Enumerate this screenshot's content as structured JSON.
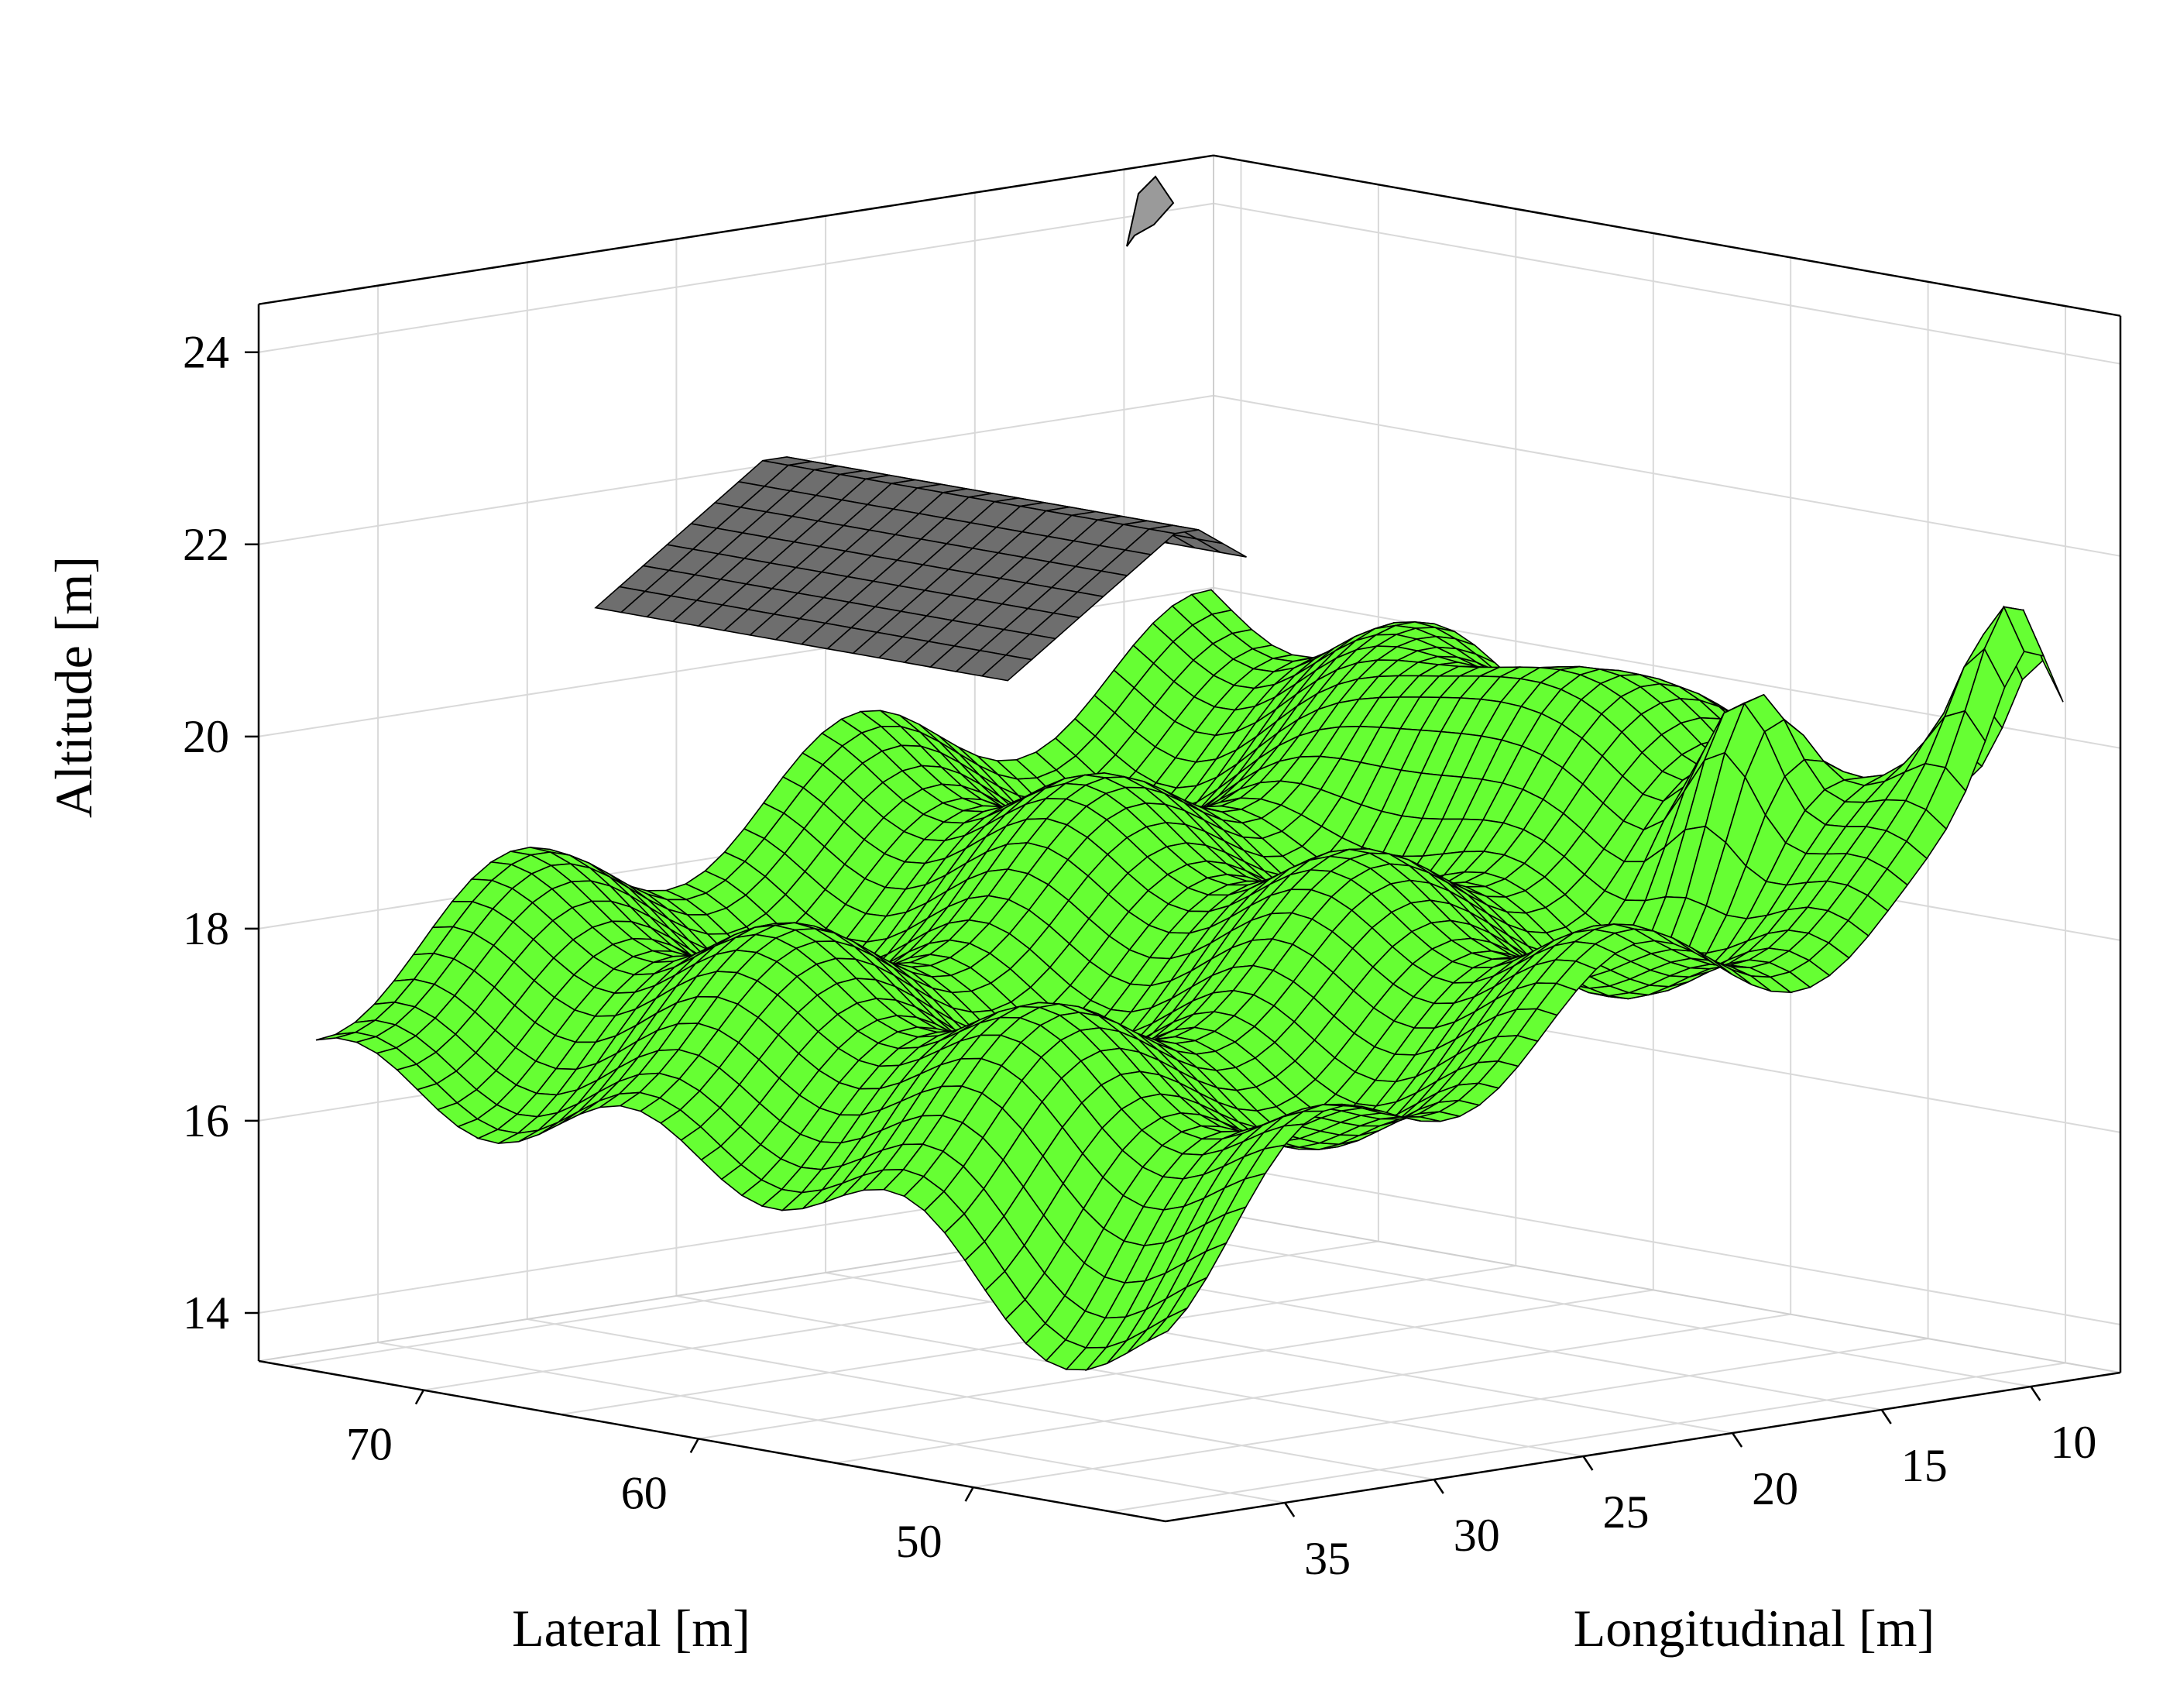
{
  "chart_data": {
    "type": "surface",
    "title": "",
    "xlabel": "Lateral [m]",
    "ylabel": "Longitudinal [m]",
    "zlabel": "Altitude [m]",
    "xlim": [
      43,
      76
    ],
    "ylim": [
      7,
      39
    ],
    "zlim": [
      13.5,
      24.5
    ],
    "x_ticks": [
      50,
      60,
      70
    ],
    "y_ticks": [
      10,
      15,
      20,
      25,
      30,
      35
    ],
    "z_ticks": [
      14,
      16,
      18,
      20,
      22,
      24
    ],
    "x_tick_labels": [
      "50",
      "60",
      "70"
    ],
    "y_tick_labels": [
      "10",
      "15",
      "20",
      "25",
      "30",
      "35"
    ],
    "z_tick_labels": [
      "14",
      "16",
      "18",
      "20",
      "22",
      "24"
    ],
    "grid": true,
    "box": "open-front",
    "colors": {
      "terrain": "#66ff33",
      "structure": "#6e6e6e",
      "mesh": "#000000",
      "grid": "#d9d9d9",
      "axis": "#000000"
    },
    "series": [
      {
        "kind": "terrain-surface",
        "x_range": [
          44,
          75
        ],
        "y_range": [
          8,
          38
        ],
        "z_range": [
          14.5,
          22.0
        ]
      },
      {
        "kind": "roof-surface",
        "z_range": [
          21.5,
          23.0
        ]
      }
    ]
  }
}
